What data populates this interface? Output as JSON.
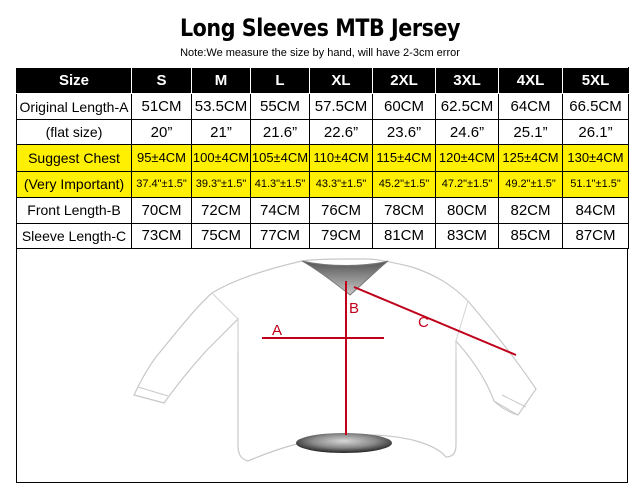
{
  "title": "Long Sleeves MTB Jersey",
  "note": "Note:We measure the size by hand, will have 2-3cm error",
  "table": {
    "header": [
      "Size",
      "S",
      "M",
      "L",
      "XL",
      "2XL",
      "3XL",
      "4XL",
      "5XL"
    ],
    "original_length_label_1": "Original Length-A",
    "original_length_label_2": "(flat size)",
    "original_length_cm": [
      "51CM",
      "53.5CM",
      "55CM",
      "57.5CM",
      "60CM",
      "62.5CM",
      "64CM",
      "66.5CM"
    ],
    "original_length_in": [
      "20”",
      "21”",
      "21.6”",
      "22.6”",
      "23.6”",
      "24.6”",
      "25.1”",
      "26.1”"
    ],
    "chest_label_1": "Suggest Chest",
    "chest_label_2": "(Very Important)",
    "chest_cm": [
      "95±4CM",
      "100±4CM",
      "105±4CM",
      "110±4CM",
      "115±4CM",
      "120±4CM",
      "125±4CM",
      "130±4CM"
    ],
    "chest_in": [
      "37.4\"±1.5\"",
      "39.3\"±1.5\"",
      "41.3\"±1.5\"",
      "43.3\"±1.5\"",
      "45.2\"±1.5\"",
      "47.2\"±1.5\"",
      "49.2\"±1.5\"",
      "51.1\"±1.5\""
    ],
    "front_length_label": "Front Length-B",
    "front_length": [
      "70CM",
      "72CM",
      "74CM",
      "76CM",
      "78CM",
      "80CM",
      "82CM",
      "84CM"
    ],
    "sleeve_length_label": "Sleeve Length-C",
    "sleeve_length": [
      "73CM",
      "75CM",
      "77CM",
      "79CM",
      "81CM",
      "83CM",
      "85CM",
      "87CM"
    ]
  },
  "diagram": {
    "label_a": "A",
    "label_b": "B",
    "label_c": "C",
    "measure_color": "#c0001a"
  }
}
